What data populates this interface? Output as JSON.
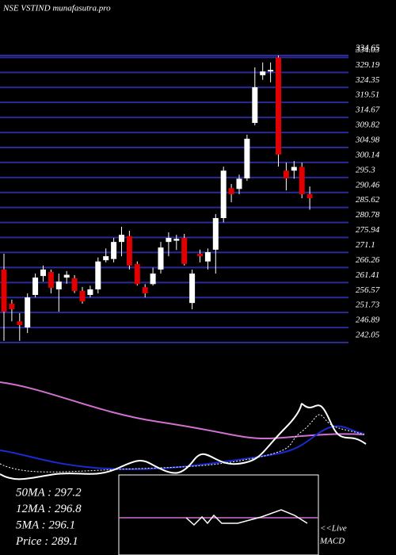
{
  "chart_data": {
    "type": "candlestick",
    "title": "NSE VSTIND munafasutra.pro",
    "up_color": "#ffffff",
    "down_color": "#e00000",
    "grid_color": "#2a2a9a",
    "ylim": [
      242.05,
      334.65
    ],
    "yticks": [
      334.65,
      334.03,
      329.19,
      324.35,
      319.51,
      314.67,
      309.82,
      304.98,
      300.14,
      295.3,
      290.46,
      285.62,
      280.78,
      275.94,
      271.1,
      266.26,
      261.41,
      256.57,
      251.73,
      246.89,
      242.05
    ],
    "open": [
      265.6,
      254.6,
      248.9,
      246.9,
      257.4,
      263.5,
      264.8,
      259.2,
      263.0,
      262.8,
      258.7,
      257.4,
      259.2,
      268.6,
      269.0,
      274.5,
      276.4,
      267.4,
      259.9,
      260.9,
      265.6,
      274.5,
      274.9,
      275.8,
      254.8,
      270.7,
      268.2,
      272.0,
      282.2,
      291.9,
      291.6,
      295.0,
      312.9,
      328.3,
      329.5,
      334.0,
      297.5,
      297.5,
      298.7,
      289.9
    ],
    "high": [
      270.7,
      255.9,
      251.5,
      257.9,
      264.3,
      266.9,
      265.6,
      264.3,
      265.1,
      263.8,
      260.0,
      260.4,
      269.5,
      272.4,
      275.8,
      279.4,
      278.1,
      268.2,
      260.9,
      266.2,
      274.5,
      277.6,
      276.8,
      277.1,
      265.6,
      272.0,
      272.4,
      283.5,
      298.8,
      293.2,
      296.2,
      309.1,
      330.8,
      332.4,
      332.4,
      334.65,
      300.1,
      300.6,
      300.1,
      292.4
    ],
    "low": [
      242.6,
      248.9,
      242.6,
      245.1,
      256.6,
      261.7,
      257.9,
      252.0,
      261.0,
      258.0,
      254.6,
      256.6,
      257.9,
      267.9,
      267.9,
      269.9,
      265.6,
      260.4,
      256.6,
      260.4,
      264.3,
      269.9,
      271.9,
      266.9,
      252.8,
      267.9,
      265.6,
      264.3,
      280.8,
      287.3,
      289.9,
      294.2,
      312.1,
      326.8,
      326.0,
      298.8,
      291.1,
      294.9,
      288.6,
      284.9
    ],
    "close": [
      252.0,
      252.8,
      247.7,
      256.6,
      263.0,
      265.6,
      259.7,
      261.7,
      263.9,
      258.7,
      255.3,
      259.2,
      268.2,
      269.9,
      274.5,
      276.8,
      266.9,
      260.9,
      257.9,
      264.3,
      272.7,
      275.8,
      275.5,
      267.4,
      264.3,
      269.9,
      271.2,
      282.2,
      297.5,
      289.9,
      294.9,
      307.8,
      324.4,
      329.5,
      330.0,
      302.7,
      295.0,
      298.7,
      289.9,
      288.6
    ],
    "stats": [
      "50MA : 297.2",
      "12MA : 296.8",
      "5MA : 296.1",
      "Price  : 289.1"
    ],
    "live_label": "<<Live",
    "macd_label": "MACD"
  }
}
